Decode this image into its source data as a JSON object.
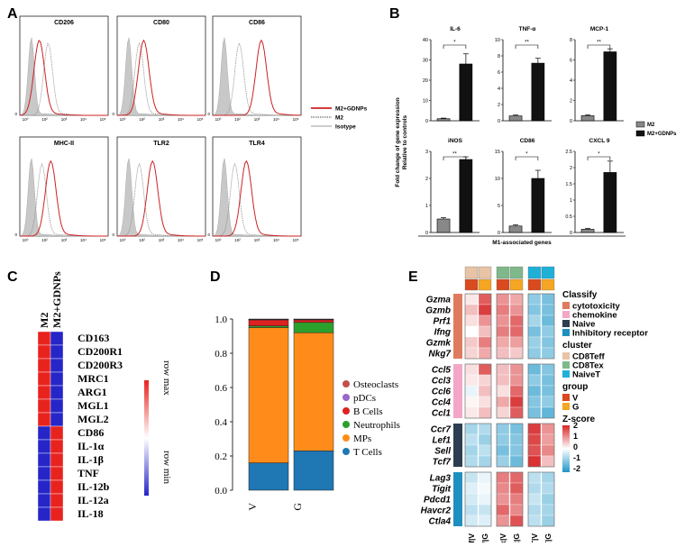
{
  "panels": {
    "A": {
      "label": "A",
      "plots": [
        {
          "title": "CD206"
        },
        {
          "title": "CD80"
        },
        {
          "title": "CD86"
        },
        {
          "title": "MHC-II"
        },
        {
          "title": "TLR2"
        },
        {
          "title": "TLR4"
        }
      ],
      "ytick": "0",
      "xticks": [
        "10⁰",
        "10²",
        "10³",
        "10⁴",
        "10⁵"
      ],
      "legend": [
        {
          "label": "M2+GDNPs",
          "color": "#cc2222",
          "style": "solid"
        },
        {
          "label": "M2",
          "color": "#999999",
          "style": "dotted"
        },
        {
          "label": "Isotype",
          "color": "#cccccc",
          "style": "solid"
        }
      ]
    },
    "B": {
      "label": "B",
      "ylabel_line1": "Fold change of gene expression",
      "ylabel_line2": "Relative to controls",
      "xlabel": "M1-associated genes",
      "legend": [
        {
          "label": "M2",
          "color": "#888888"
        },
        {
          "label": "M2+GDNPs",
          "color": "#111111"
        }
      ]
    },
    "C": {
      "label": "C",
      "columns": [
        "M2",
        "M2+GDNPs"
      ],
      "rows": [
        "CD163",
        "CD200R1",
        "CD200R3",
        "MRC1",
        "ARG1",
        "MGL1",
        "MGL2",
        "CD86",
        "IL-1α",
        "IL-1β",
        "TNF",
        "IL-12b",
        "IL-12a",
        "IL-18"
      ],
      "scale_max": "row max",
      "scale_min": "row min"
    },
    "D": {
      "label": "D",
      "legend": [
        {
          "label": "Osteoclasts",
          "color": "#c0504d"
        },
        {
          "label": "pDCs",
          "color": "#9966cc"
        },
        {
          "label": "B Cells",
          "color": "#dd2222"
        },
        {
          "label": "Neutrophils",
          "color": "#2ca02c"
        },
        {
          "label": "MPs",
          "color": "#ff8c1a"
        },
        {
          "label": "T Cells",
          "color": "#1f77b4"
        }
      ]
    },
    "E": {
      "label": "E",
      "groups": [
        {
          "genes": [
            "Gzma",
            "Gzmb",
            "Prf1",
            "Ifng",
            "Gzmk",
            "Nkg7"
          ]
        },
        {
          "genes": [
            "Ccl5",
            "Ccl3",
            "Ccl6",
            "Ccl4",
            "Ccl1"
          ]
        },
        {
          "genes": [
            "Ccr7",
            "Lef1",
            "Sell",
            "Tcf7"
          ]
        },
        {
          "genes": [
            "Lag3",
            "Tigit",
            "Pdcd1",
            "Havcr2",
            "Ctla4"
          ]
        }
      ],
      "col_labels": [
        "CD8Teff|V",
        "CD8Teff|G",
        "CD8Tex|V",
        "CD8Tex|G",
        "NaiveT|V",
        "NaiveT|G"
      ],
      "classify_title": "Classify",
      "classify": [
        {
          "label": "cytotoxicity",
          "color": "#e07a5f"
        },
        {
          "label": "chemokine",
          "color": "#f4a6c6"
        },
        {
          "label": "Naive",
          "color": "#2c3e50"
        },
        {
          "label": "Inhibitory receptor",
          "color": "#1f8fbf"
        }
      ],
      "cluster_title": "cluster",
      "cluster": [
        {
          "label": "CD8Teff",
          "color": "#e9c3a6"
        },
        {
          "label": "CD8Tex",
          "color": "#7fb88a"
        },
        {
          "label": "NaiveT",
          "color": "#1fb0d8"
        }
      ],
      "group_title": "group",
      "group": [
        {
          "label": "V",
          "color": "#d94a1e"
        },
        {
          "label": "G",
          "color": "#f5a623"
        }
      ],
      "zscore_title": "Z-score",
      "zscore_ticks": [
        "2",
        "1",
        "0",
        "-1",
        "-2"
      ]
    }
  },
  "chart_data": [
    {
      "type": "bar",
      "panel": "B",
      "subplots": [
        {
          "title": "IL-6",
          "categories": [
            "M2",
            "M2+GDNPs"
          ],
          "values": [
            1.0,
            28.0
          ],
          "errors": [
            0.3,
            5.0
          ],
          "ylim": [
            0,
            40
          ],
          "yticks": [
            0,
            10,
            20,
            30,
            40
          ],
          "sig": "*"
        },
        {
          "title": "TNF-α",
          "categories": [
            "M2",
            "M2+GDNPs"
          ],
          "values": [
            0.6,
            7.1
          ],
          "errors": [
            0.1,
            0.6
          ],
          "ylim": [
            0,
            10
          ],
          "yticks": [
            0,
            2,
            4,
            6,
            8,
            10
          ],
          "sig": "**"
        },
        {
          "title": "MCP-1",
          "categories": [
            "M2",
            "M2+GDNPs"
          ],
          "values": [
            0.5,
            6.8
          ],
          "errors": [
            0.1,
            0.3
          ],
          "ylim": [
            0,
            8
          ],
          "yticks": [
            0,
            2,
            4,
            6,
            8
          ],
          "sig": "**"
        },
        {
          "title": "iNOS",
          "categories": [
            "M2",
            "M2+GDNPs"
          ],
          "values": [
            0.5,
            2.7
          ],
          "errors": [
            0.05,
            0.1
          ],
          "ylim": [
            0,
            3
          ],
          "yticks": [
            0,
            1,
            2,
            3
          ],
          "sig": "**"
        },
        {
          "title": "CD86",
          "categories": [
            "M2",
            "M2+GDNPs"
          ],
          "values": [
            1.2,
            10.0
          ],
          "errors": [
            0.2,
            1.5
          ],
          "ylim": [
            0,
            15
          ],
          "yticks": [
            0,
            5,
            10,
            15
          ],
          "sig": "*"
        },
        {
          "title": "CXCL 9",
          "categories": [
            "M2",
            "M2+GDNPs"
          ],
          "values": [
            0.1,
            1.85
          ],
          "errors": [
            0.03,
            0.35
          ],
          "ylim": [
            0,
            2.5
          ],
          "yticks": [
            0,
            0.5,
            1,
            1.5,
            2,
            2.5
          ],
          "sig": "*"
        }
      ]
    },
    {
      "type": "bar",
      "stacked": true,
      "panel": "D",
      "categories": [
        "V",
        "G"
      ],
      "ylim": [
        0,
        1.0
      ],
      "yticks": [
        "0.0",
        "0.2",
        "0.4",
        "0.6",
        "0.8",
        "1.0"
      ],
      "series": [
        {
          "name": "T Cells",
          "values": [
            0.16,
            0.23
          ]
        },
        {
          "name": "MPs",
          "values": [
            0.79,
            0.69
          ]
        },
        {
          "name": "Neutrophils",
          "values": [
            0.01,
            0.06
          ]
        },
        {
          "name": "B Cells",
          "values": [
            0.035,
            0.015
          ]
        },
        {
          "name": "pDCs",
          "values": [
            0.003,
            0.003
          ]
        },
        {
          "name": "Osteoclasts",
          "values": [
            0.002,
            0.002
          ]
        }
      ]
    },
    {
      "type": "heatmap",
      "panel": "C",
      "values": [
        [
          1,
          -1
        ],
        [
          1,
          -1
        ],
        [
          1,
          -1
        ],
        [
          1,
          -1
        ],
        [
          1,
          -1
        ],
        [
          1,
          -1
        ],
        [
          1,
          -1
        ],
        [
          -1,
          1
        ],
        [
          -1,
          1
        ],
        [
          -1,
          1
        ],
        [
          -1,
          1
        ],
        [
          -1,
          1
        ],
        [
          -1,
          1
        ],
        [
          -1,
          1
        ]
      ]
    },
    {
      "type": "heatmap",
      "panel": "E",
      "values": [
        [
          0.2,
          1.5,
          1.0,
          0.8,
          -1.0,
          -1.2
        ],
        [
          0.6,
          1.8,
          1.2,
          1.0,
          -1.1,
          -1.2
        ],
        [
          0.3,
          1.0,
          1.0,
          1.4,
          -0.8,
          -1.3
        ],
        [
          0.0,
          0.6,
          1.2,
          1.4,
          -1.2,
          -1.0
        ],
        [
          0.5,
          1.2,
          0.8,
          0.9,
          -0.9,
          -1.1
        ],
        [
          0.4,
          0.8,
          0.6,
          0.5,
          -1.0,
          -1.0
        ],
        [
          0.3,
          1.5,
          0.6,
          1.0,
          -1.3,
          -1.1
        ],
        [
          0.2,
          0.4,
          0.6,
          1.0,
          -1.0,
          -1.2
        ],
        [
          -0.2,
          0.6,
          0.3,
          1.4,
          -1.3,
          -1.2
        ],
        [
          0.1,
          0.3,
          0.8,
          1.8,
          -1.1,
          -1.0
        ],
        [
          0.2,
          0.6,
          0.4,
          1.5,
          -1.2,
          -1.4
        ],
        [
          -0.8,
          -0.7,
          -1.0,
          -1.2,
          1.8,
          1.0
        ],
        [
          -0.6,
          -0.9,
          -1.0,
          -1.1,
          1.7,
          0.9
        ],
        [
          -0.8,
          -0.6,
          -1.2,
          -1.1,
          1.6,
          1.1
        ],
        [
          -0.7,
          -0.8,
          -0.9,
          -1.3,
          1.9,
          0.6
        ],
        [
          -0.5,
          -0.2,
          1.2,
          1.4,
          -0.6,
          -0.8
        ],
        [
          -0.3,
          -0.1,
          1.1,
          1.5,
          -0.7,
          -0.7
        ],
        [
          -0.4,
          -0.2,
          1.0,
          1.2,
          -0.5,
          -0.9
        ],
        [
          -0.6,
          -0.5,
          1.4,
          1.1,
          -0.7,
          -0.8
        ],
        [
          -0.4,
          -0.3,
          1.0,
          1.6,
          -0.6,
          -0.9
        ]
      ]
    }
  ]
}
